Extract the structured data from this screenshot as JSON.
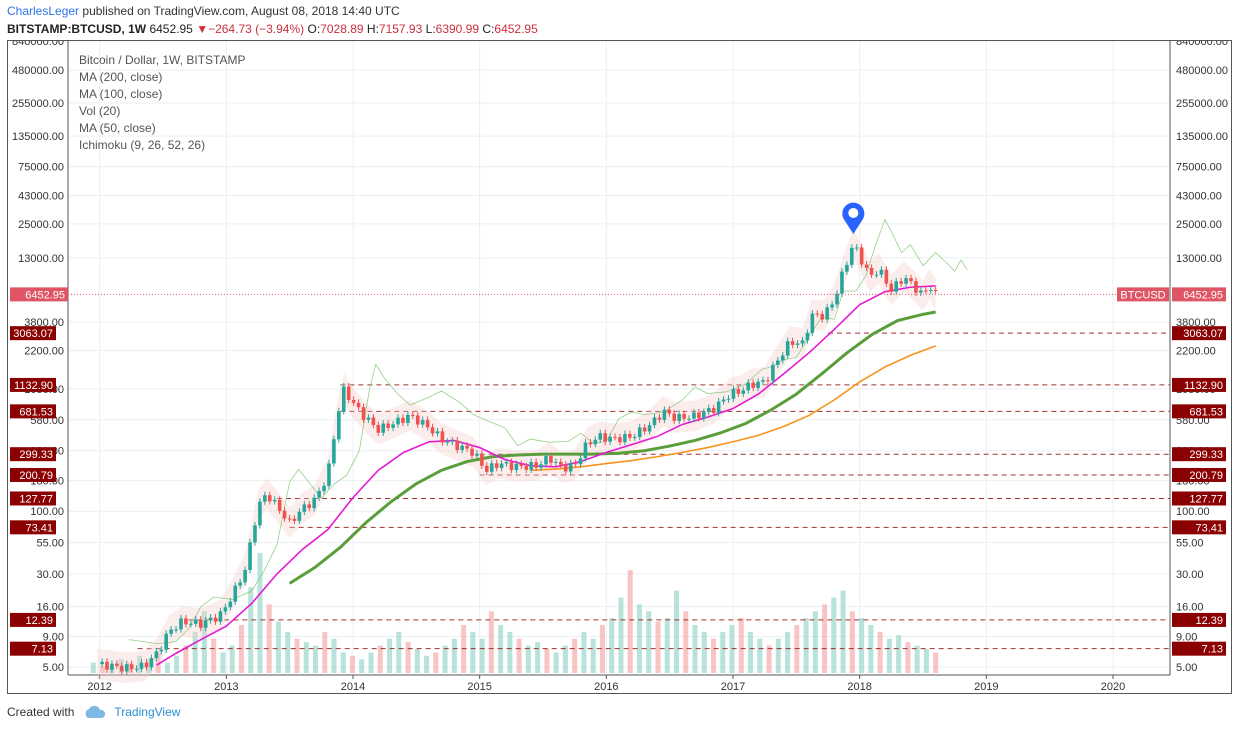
{
  "header": {
    "author": "CharlesLeger",
    "published_text": "published on TradingView.com, August 08, 2018 14:40 UTC",
    "symbol": "BITSTAMP:BTCUSD, 1W",
    "last": "6452.95",
    "change": "−264.73 (−3.94%)",
    "o_label": "O:",
    "o_value": "7028.89",
    "h_label": "H:",
    "h_value": "7157.93",
    "l_label": "L:",
    "l_value": "6390.99",
    "c_label": "C:",
    "c_value": "6452.95"
  },
  "legend": [
    "Bitcoin / Dollar, 1W, BITSTAMP",
    "MA (200, close)",
    "MA (100, close)",
    "Vol (20)",
    "MA (50, close)",
    "Ichimoku (9, 26, 52, 26)"
  ],
  "footer": {
    "created_with": "Created with",
    "brand": "TradingView"
  },
  "colors": {
    "up": "#26a69a",
    "down": "#ef5350",
    "ma200": "#f7931a",
    "ma100": "#5a9e3c",
    "ma50": "#e619d3",
    "level": "#8b0000",
    "price_line": "#e05565"
  },
  "chart_data": {
    "type": "candlestick",
    "title": "Bitcoin / Dollar, 1W, BITSTAMP",
    "yscale": "log",
    "x_ticks": [
      "2012",
      "2013",
      "2014",
      "2015",
      "2016",
      "2017",
      "2018",
      "2019",
      "2020"
    ],
    "y_ticks": [
      "5.00",
      "9.00",
      "16.00",
      "30.00",
      "55.00",
      "100.00",
      "180.00",
      "320.00",
      "580.00",
      "1050.00",
      "2200.00",
      "3800.00",
      "13000.00",
      "25000.00",
      "43000.00",
      "75000.00",
      "135000.00",
      "255000.00",
      "480000.00",
      "840000.00"
    ],
    "ylim": [
      4.3,
      840000
    ],
    "xlim": [
      2011.75,
      2020.45
    ],
    "current_price": {
      "label": "BTCUSD",
      "value": "6452.95",
      "numeric": 6452.95
    },
    "horizontal_levels": [
      {
        "label": "3063.07",
        "value": 3063.07,
        "start": 2017.75
      },
      {
        "label": "1132.90",
        "value": 1132.9,
        "start": 2013.9
      },
      {
        "label": "681.53",
        "value": 681.53,
        "start": 2013.9
      },
      {
        "label": "299.33",
        "value": 299.33,
        "start": 2015.0
      },
      {
        "label": "200.79",
        "value": 200.79,
        "start": 2015.0
      },
      {
        "label": "127.77",
        "value": 127.77,
        "start": 2013.4
      },
      {
        "label": "73.41",
        "value": 73.41,
        "start": 2013.5
      },
      {
        "label": "12.39",
        "value": 12.39,
        "start": 2012.7
      },
      {
        "label": "7.13",
        "value": 7.13,
        "start": 2012.3
      }
    ],
    "price_path": [
      [
        2011.98,
        5.3
      ],
      [
        2012.1,
        5.1
      ],
      [
        2012.2,
        4.9
      ],
      [
        2012.35,
        5.1
      ],
      [
        2012.45,
        6.5
      ],
      [
        2012.55,
        10
      ],
      [
        2012.65,
        12
      ],
      [
        2012.8,
        11.5
      ],
      [
        2012.95,
        13.5
      ],
      [
        2013.05,
        20
      ],
      [
        2013.15,
        33
      ],
      [
        2013.25,
        110
      ],
      [
        2013.32,
        140
      ],
      [
        2013.4,
        110
      ],
      [
        2013.5,
        80
      ],
      [
        2013.6,
        105
      ],
      [
        2013.7,
        125
      ],
      [
        2013.8,
        200
      ],
      [
        2013.88,
        650
      ],
      [
        2013.93,
        1050
      ],
      [
        2014.0,
        800
      ],
      [
        2014.1,
        600
      ],
      [
        2014.2,
        480
      ],
      [
        2014.35,
        560
      ],
      [
        2014.45,
        630
      ],
      [
        2014.6,
        500
      ],
      [
        2014.7,
        400
      ],
      [
        2014.8,
        360
      ],
      [
        2014.95,
        310
      ],
      [
        2015.05,
        220
      ],
      [
        2015.15,
        250
      ],
      [
        2015.3,
        235
      ],
      [
        2015.45,
        240
      ],
      [
        2015.55,
        280
      ],
      [
        2015.65,
        230
      ],
      [
        2015.75,
        240
      ],
      [
        2015.85,
        370
      ],
      [
        2015.95,
        420
      ],
      [
        2016.05,
        400
      ],
      [
        2016.2,
        420
      ],
      [
        2016.35,
        530
      ],
      [
        2016.45,
        680
      ],
      [
        2016.55,
        600
      ],
      [
        2016.7,
        620
      ],
      [
        2016.85,
        720
      ],
      [
        2016.98,
        960
      ],
      [
        2017.05,
        1000
      ],
      [
        2017.15,
        1150
      ],
      [
        2017.25,
        1200
      ],
      [
        2017.35,
        1800
      ],
      [
        2017.45,
        2600
      ],
      [
        2017.55,
        2500
      ],
      [
        2017.62,
        4300
      ],
      [
        2017.72,
        4300
      ],
      [
        2017.8,
        5800
      ],
      [
        2017.87,
        10000
      ],
      [
        2017.95,
        17000
      ],
      [
        2018.0,
        13500
      ],
      [
        2018.08,
        9000
      ],
      [
        2018.15,
        10500
      ],
      [
        2018.25,
        7000
      ],
      [
        2018.35,
        9000
      ],
      [
        2018.43,
        7500
      ],
      [
        2018.5,
        6300
      ],
      [
        2018.55,
        7800
      ],
      [
        2018.6,
        6452.95
      ]
    ],
    "ma50": [
      [
        2012.45,
        5.2
      ],
      [
        2012.6,
        6.5
      ],
      [
        2012.8,
        8.5
      ],
      [
        2013.0,
        11
      ],
      [
        2013.2,
        17
      ],
      [
        2013.4,
        30
      ],
      [
        2013.6,
        48
      ],
      [
        2013.8,
        70
      ],
      [
        2014.0,
        130
      ],
      [
        2014.2,
        220
      ],
      [
        2014.4,
        310
      ],
      [
        2014.6,
        380
      ],
      [
        2014.8,
        390
      ],
      [
        2015.0,
        340
      ],
      [
        2015.2,
        270
      ],
      [
        2015.4,
        240
      ],
      [
        2015.6,
        235
      ],
      [
        2015.8,
        260
      ],
      [
        2016.0,
        310
      ],
      [
        2016.2,
        360
      ],
      [
        2016.4,
        420
      ],
      [
        2016.6,
        530
      ],
      [
        2016.8,
        610
      ],
      [
        2017.0,
        720
      ],
      [
        2017.2,
        950
      ],
      [
        2017.4,
        1400
      ],
      [
        2017.6,
        2100
      ],
      [
        2017.8,
        3300
      ],
      [
        2018.0,
        5300
      ],
      [
        2018.2,
        6800
      ],
      [
        2018.4,
        7400
      ],
      [
        2018.6,
        7600
      ]
    ],
    "ma100": [
      [
        2013.5,
        25
      ],
      [
        2013.7,
        34
      ],
      [
        2013.9,
        50
      ],
      [
        2014.1,
        80
      ],
      [
        2014.3,
        120
      ],
      [
        2014.5,
        170
      ],
      [
        2014.7,
        220
      ],
      [
        2014.9,
        260
      ],
      [
        2015.1,
        285
      ],
      [
        2015.3,
        295
      ],
      [
        2015.5,
        300
      ],
      [
        2015.7,
        300
      ],
      [
        2015.9,
        300
      ],
      [
        2016.1,
        305
      ],
      [
        2016.3,
        320
      ],
      [
        2016.5,
        350
      ],
      [
        2016.7,
        390
      ],
      [
        2016.9,
        450
      ],
      [
        2017.1,
        540
      ],
      [
        2017.3,
        700
      ],
      [
        2017.5,
        950
      ],
      [
        2017.7,
        1400
      ],
      [
        2017.9,
        2100
      ],
      [
        2018.1,
        3000
      ],
      [
        2018.3,
        3900
      ],
      [
        2018.5,
        4400
      ],
      [
        2018.6,
        4600
      ]
    ],
    "ma200": [
      [
        2015.4,
        220
      ],
      [
        2015.6,
        225
      ],
      [
        2015.8,
        235
      ],
      [
        2016.0,
        250
      ],
      [
        2016.2,
        265
      ],
      [
        2016.4,
        285
      ],
      [
        2016.6,
        310
      ],
      [
        2016.8,
        340
      ],
      [
        2017.0,
        380
      ],
      [
        2017.2,
        430
      ],
      [
        2017.4,
        510
      ],
      [
        2017.6,
        630
      ],
      [
        2017.8,
        850
      ],
      [
        2018.0,
        1200
      ],
      [
        2018.2,
        1600
      ],
      [
        2018.4,
        2000
      ],
      [
        2018.6,
        2400
      ]
    ],
    "volume": [
      3,
      2,
      2,
      4,
      3,
      5,
      4,
      6,
      3,
      5,
      8,
      12,
      18,
      10,
      6,
      8,
      14,
      25,
      35,
      20,
      15,
      12,
      10,
      9,
      8,
      12,
      10,
      6,
      5,
      4,
      6,
      8,
      10,
      12,
      9,
      7,
      5,
      6,
      8,
      10,
      14,
      12,
      10,
      18,
      14,
      12,
      10,
      8,
      9,
      7,
      6,
      8,
      10,
      12,
      10,
      14,
      16,
      22,
      30,
      20,
      18,
      15,
      16,
      24,
      18,
      14,
      12,
      10,
      12,
      14,
      16,
      12,
      10,
      8,
      10,
      12,
      14,
      16,
      18,
      20,
      22,
      24,
      18,
      16,
      14,
      12,
      10,
      11,
      9,
      8,
      7,
      6
    ]
  }
}
